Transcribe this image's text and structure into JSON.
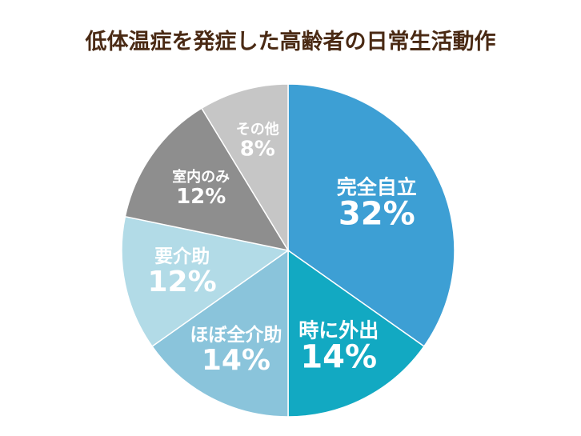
{
  "title": "低体温症を発症した高齢者の日常生活動作",
  "chart_data": {
    "type": "pie",
    "title": "低体温症を発症した高齢者の日常生活動作",
    "unit": "%",
    "slices": [
      {
        "label": "完全自立",
        "value": 32,
        "display": "32%",
        "color": "#3d9fd4"
      },
      {
        "label": "時に外出",
        "value": 14,
        "display": "14%",
        "color": "#12a9c2"
      },
      {
        "label": "ほぼ全介助",
        "value": 14,
        "display": "14%",
        "color": "#8ac4db"
      },
      {
        "label": "要介助",
        "value": 12,
        "display": "12%",
        "color": "#b2dbe7"
      },
      {
        "label": "室内のみ",
        "value": 12,
        "display": "12%",
        "color": "#8e8e8e"
      },
      {
        "label": "その他",
        "value": 8,
        "display": "8%",
        "color": "#c6c6c6"
      }
    ],
    "start": "12 o'clock",
    "direction": "clockwise",
    "legend": "none (labels inside slices)"
  }
}
